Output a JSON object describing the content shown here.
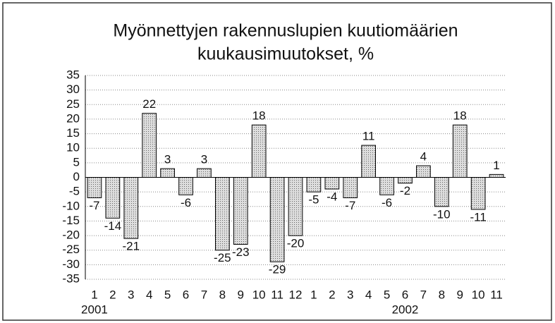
{
  "chart_data": {
    "type": "bar",
    "title": [
      "Myönnettyjen rakennuslupien kuutiomäärien",
      "kuukausimuutokset, %"
    ],
    "categories": [
      "1",
      "2",
      "3",
      "4",
      "5",
      "6",
      "7",
      "8",
      "9",
      "10",
      "11",
      "12",
      "1",
      "2",
      "3",
      "4",
      "5",
      "6",
      "7",
      "8",
      "9",
      "10",
      "11"
    ],
    "years": [
      "2001",
      "2002"
    ],
    "values": [
      -7,
      -14,
      -21,
      22,
      3,
      -6,
      3,
      -25,
      -23,
      18,
      -29,
      -20,
      -5,
      -4,
      -7,
      11,
      -6,
      -2,
      4,
      -10,
      18,
      -11,
      1
    ],
    "color": "#c4c4c4",
    "ylim": [
      -35,
      35
    ],
    "yticks": [
      -35,
      -30,
      -25,
      -20,
      -15,
      -10,
      -5,
      0,
      5,
      10,
      15,
      20,
      25,
      30,
      35
    ],
    "grid": true
  }
}
